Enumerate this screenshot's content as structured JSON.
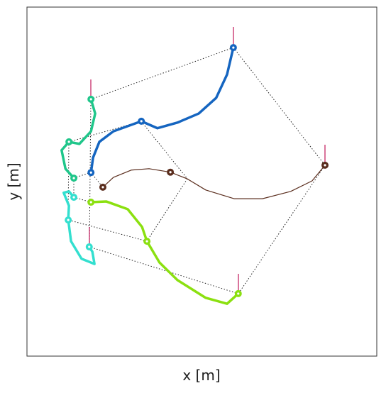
{
  "chart_data": {
    "type": "line",
    "xlabel": "x [m]",
    "ylabel": "y [m]",
    "xlim": [
      0,
      100
    ],
    "ylim": [
      0,
      100
    ],
    "series": [
      {
        "color": "#1565c0",
        "x": [
          18.3,
          18.9,
          20.7,
          24.7,
          32.7,
          37.3,
          43.0,
          49.1,
          54.1,
          57.2,
          59.0
        ],
        "values": [
          52.6,
          56.9,
          61.4,
          64.4,
          67.3,
          65.3,
          66.9,
          69.5,
          74.0,
          80.7,
          88.4
        ],
        "width": 3.5
      },
      {
        "color": "#1fc68a",
        "x": [
          18.3,
          19.5,
          18.3,
          15.0,
          12.0,
          9.9,
          11.0,
          13.4
        ],
        "values": [
          73.6,
          69.5,
          64.4,
          60.8,
          61.4,
          59.0,
          53.7,
          51.0
        ],
        "width": 3.5
      },
      {
        "color": "#33dfcf",
        "x": [
          13.4,
          12.0,
          10.5,
          12.0,
          11.8,
          12.6,
          15.6,
          19.3,
          18.7,
          17.8
        ],
        "values": [
          45.5,
          47.2,
          46.8,
          43.1,
          39.0,
          32.9,
          27.9,
          26.4,
          29.9,
          31.3
        ],
        "width": 3.5
      },
      {
        "color": "#5a2d1d",
        "x": [
          21.7,
          24.7,
          29.8,
          34.9,
          41.0,
          45.8,
          51.1,
          59.2,
          67.3,
          75.4,
          81.5,
          85.2
        ],
        "values": [
          48.4,
          51.2,
          53.3,
          53.7,
          52.7,
          50.8,
          47.6,
          45.1,
          45.1,
          47.2,
          50.2,
          54.7
        ],
        "width": 1.2
      },
      {
        "color": "#8be010",
        "x": [
          18.3,
          22.7,
          28.8,
          32.9,
          34.3,
          37.9,
          43.0,
          51.1,
          57.2,
          60.4
        ],
        "values": [
          44.1,
          44.3,
          42.1,
          37.0,
          32.9,
          26.8,
          21.8,
          16.7,
          15.0,
          17.9
        ],
        "width": 3.5
      }
    ]
  }
}
